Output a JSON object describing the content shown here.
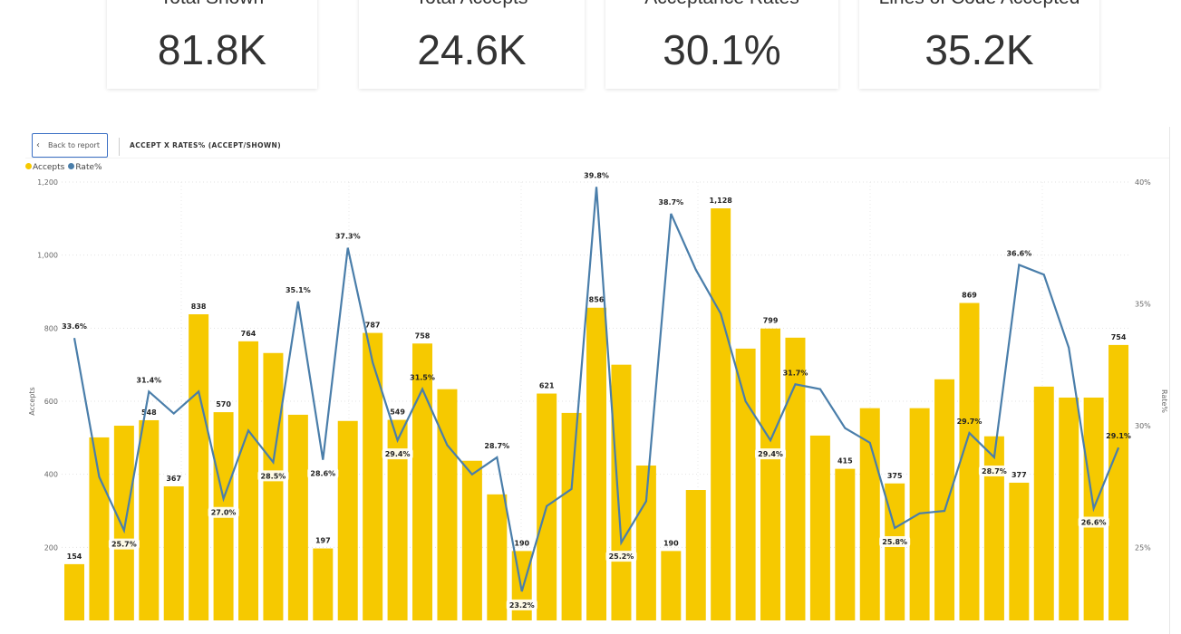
{
  "cards": [
    {
      "title": "Total Shown",
      "value": "81.8K"
    },
    {
      "title": "Total Accepts",
      "value": "24.6K"
    },
    {
      "title": "Acceptance Rates",
      "value": "30.1%"
    },
    {
      "title": "Lines of Code Accepted",
      "value": "35.2K"
    }
  ],
  "visual": {
    "back_label": "Back to report",
    "title": "ACCEPT X RATES% (ACCEPT/SHOWN)"
  },
  "chart_data": {
    "type": "bar+line",
    "title": "ACCEPT X RATES% (ACCEPT/SHOWN)",
    "legend": {
      "position": "top-left",
      "items": [
        "Accepts",
        "Rate%"
      ]
    },
    "ylabel": "Accepts",
    "y2label": "Rate%",
    "ylim": [
      0,
      1200
    ],
    "yticks": [
      "1,200",
      "1,000",
      "800",
      "600",
      "400",
      "200"
    ],
    "y2lim": [
      22,
      40
    ],
    "y2ticks": [
      "40%",
      "35%",
      "30%",
      "25%"
    ],
    "grid": true,
    "colors": {
      "Accepts": "#F6C900",
      "Rate%": "#4A7EAA"
    },
    "series": [
      {
        "name": "Accepts",
        "type": "bar",
        "values": [
          154,
          501,
          533,
          548,
          367,
          838,
          570,
          764,
          732,
          563,
          197,
          546,
          787,
          549,
          758,
          633,
          437,
          345,
          190,
          621,
          568,
          856,
          700,
          424,
          190,
          357,
          1128,
          744,
          799,
          774,
          506,
          415,
          581,
          375,
          581,
          660,
          869,
          504,
          377,
          640,
          610,
          610,
          754
        ],
        "labels": [
          "154",
          null,
          null,
          "548",
          "367",
          "838",
          "570",
          "764",
          null,
          null,
          "197",
          null,
          "787",
          "549",
          "758",
          null,
          null,
          null,
          "190",
          "621",
          null,
          "856",
          null,
          null,
          "190",
          null,
          "1,128",
          null,
          "799",
          null,
          null,
          "415",
          null,
          "375",
          null,
          null,
          "869",
          null,
          "377",
          null,
          null,
          null,
          "754"
        ]
      },
      {
        "name": "Rate%",
        "type": "line",
        "values": [
          33.6,
          27.9,
          25.7,
          31.4,
          30.5,
          31.4,
          27.0,
          29.8,
          28.5,
          35.1,
          28.6,
          37.3,
          32.6,
          29.4,
          31.5,
          29.2,
          28.0,
          28.7,
          23.2,
          26.7,
          27.4,
          39.8,
          25.2,
          26.9,
          38.7,
          36.4,
          34.6,
          31.0,
          29.4,
          31.7,
          31.5,
          29.9,
          29.3,
          25.8,
          26.4,
          26.5,
          29.7,
          28.7,
          36.6,
          36.2,
          33.2,
          26.6,
          29.1
        ],
        "labels": [
          "33.6%",
          null,
          "25.7%",
          "31.4%",
          null,
          null,
          "27.0%",
          null,
          "28.5%",
          "35.1%",
          "28.6%",
          "37.3%",
          null,
          "29.4%",
          "31.5%",
          null,
          null,
          "28.7%",
          "23.2%",
          null,
          null,
          "39.8%",
          "25.2%",
          null,
          "38.7%",
          null,
          null,
          null,
          "29.4%",
          "31.7%",
          null,
          null,
          null,
          "25.8%",
          null,
          null,
          "29.7%",
          "28.7%",
          "36.6%",
          null,
          null,
          "26.6%",
          "29.1%"
        ]
      }
    ]
  }
}
